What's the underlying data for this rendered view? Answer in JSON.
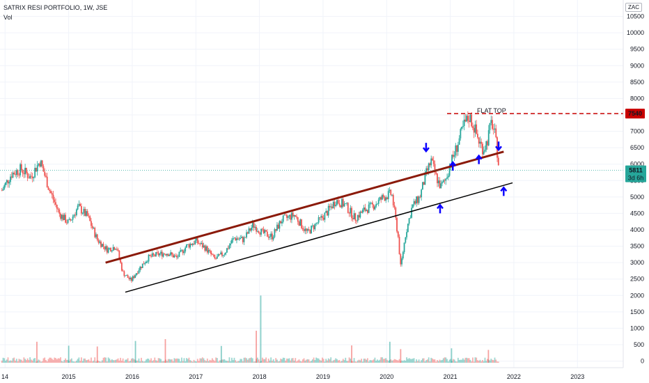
{
  "header": {
    "title": "SATRIX RESI PORTFOLIO, 1W, JSE",
    "indicator": "Vol",
    "currency": "ZAC"
  },
  "price_tags": {
    "resistance": "7540",
    "last_price": "5811",
    "countdown": "3d 6h"
  },
  "annotations": {
    "flat_top": "FLAT TOP"
  },
  "colors": {
    "up": "#26a69a",
    "down": "#ef5350",
    "upper_channel": "#8b1a0a",
    "lower_channel": "#000000",
    "resistance": "#c80000",
    "arrow": "#0b00ff",
    "last_price_bg": "#26a69a"
  },
  "chart_data": {
    "type": "candlestick",
    "title": "SATRIX RESI PORTFOLIO, 1W, JSE",
    "x_ticks": [
      "14",
      "2015",
      "2016",
      "2017",
      "2018",
      "2019",
      "2020",
      "2021",
      "2022",
      "2023"
    ],
    "y_ticks": [
      0,
      500,
      1000,
      1500,
      2000,
      2500,
      3000,
      3500,
      4000,
      4500,
      5000,
      5500,
      6000,
      6500,
      7000,
      7500,
      8000,
      8500,
      9000,
      9500,
      10000,
      10500
    ],
    "ylim": [
      -200,
      11000
    ],
    "xlim": [
      2013.92,
      2023.72
    ],
    "price_path": [
      [
        2013.95,
        5200
      ],
      [
        2014.1,
        5700
      ],
      [
        2014.25,
        5850
      ],
      [
        2014.4,
        5600
      ],
      [
        2014.55,
        6100
      ],
      [
        2014.7,
        5200
      ],
      [
        2014.85,
        4500
      ],
      [
        2015.0,
        4200
      ],
      [
        2015.15,
        4700
      ],
      [
        2015.3,
        4400
      ],
      [
        2015.45,
        3700
      ],
      [
        2015.6,
        3400
      ],
      [
        2015.75,
        3500
      ],
      [
        2015.85,
        2700
      ],
      [
        2015.98,
        2450
      ],
      [
        2016.1,
        2800
      ],
      [
        2016.25,
        3150
      ],
      [
        2016.4,
        3250
      ],
      [
        2016.55,
        3300
      ],
      [
        2016.7,
        3150
      ],
      [
        2016.85,
        3500
      ],
      [
        2017.0,
        3650
      ],
      [
        2017.15,
        3450
      ],
      [
        2017.3,
        3100
      ],
      [
        2017.45,
        3300
      ],
      [
        2017.6,
        3750
      ],
      [
        2017.75,
        3700
      ],
      [
        2017.9,
        4150
      ],
      [
        2018.05,
        3900
      ],
      [
        2018.2,
        3800
      ],
      [
        2018.35,
        4300
      ],
      [
        2018.55,
        4450
      ],
      [
        2018.75,
        3900
      ],
      [
        2018.9,
        4200
      ],
      [
        2019.05,
        4500
      ],
      [
        2019.2,
        4900
      ],
      [
        2019.35,
        4750
      ],
      [
        2019.5,
        4350
      ],
      [
        2019.65,
        4600
      ],
      [
        2019.8,
        4750
      ],
      [
        2019.95,
        5000
      ],
      [
        2020.08,
        5100
      ],
      [
        2020.18,
        3800
      ],
      [
        2020.22,
        2850
      ],
      [
        2020.3,
        3900
      ],
      [
        2020.4,
        4700
      ],
      [
        2020.52,
        5000
      ],
      [
        2020.62,
        5700
      ],
      [
        2020.7,
        6100
      ],
      [
        2020.78,
        5600
      ],
      [
        2020.85,
        5300
      ],
      [
        2020.92,
        5500
      ],
      [
        2021.0,
        6000
      ],
      [
        2021.08,
        6400
      ],
      [
        2021.15,
        6800
      ],
      [
        2021.22,
        7200
      ],
      [
        2021.3,
        7450
      ],
      [
        2021.38,
        7100
      ],
      [
        2021.45,
        6700
      ],
      [
        2021.52,
        6450
      ],
      [
        2021.58,
        6700
      ],
      [
        2021.65,
        7300
      ],
      [
        2021.7,
        6900
      ],
      [
        2021.74,
        6350
      ],
      [
        2021.77,
        5811
      ]
    ],
    "volume_spikes": [
      [
        2014.5,
        800
      ],
      [
        2015.0,
        650
      ],
      [
        2015.45,
        620
      ],
      [
        2016.05,
        830
      ],
      [
        2016.52,
        900
      ],
      [
        2017.4,
        640
      ],
      [
        2017.95,
        1220
      ],
      [
        2018.02,
        2560
      ],
      [
        2019.45,
        660
      ],
      [
        2020.05,
        800
      ],
      [
        2020.22,
        520
      ],
      [
        2021.02,
        550
      ],
      [
        2021.6,
        490
      ]
    ],
    "resistance_level": 7540,
    "last_price": 5811
  }
}
